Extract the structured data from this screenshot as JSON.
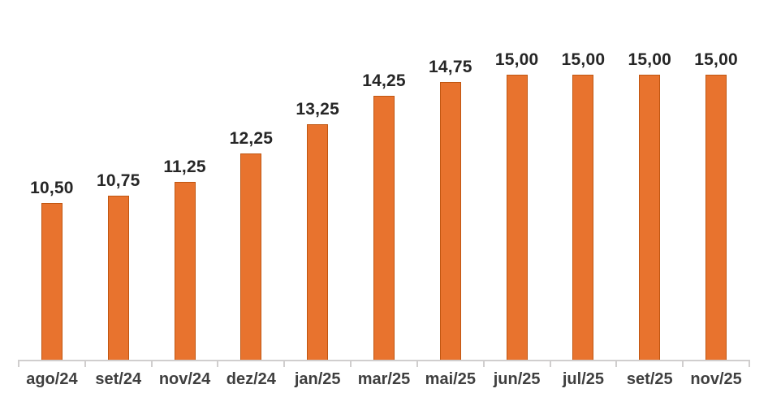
{
  "chart_data": {
    "type": "bar",
    "categories": [
      "ago/24",
      "set/24",
      "nov/24",
      "dez/24",
      "jan/25",
      "mar/25",
      "mai/25",
      "jun/25",
      "jul/25",
      "set/25",
      "nov/25"
    ],
    "values": [
      10.5,
      10.75,
      11.25,
      12.25,
      13.25,
      14.25,
      14.75,
      15.0,
      15.0,
      15.0,
      15.0
    ],
    "value_labels": [
      "10,50",
      "10,75",
      "11,25",
      "12,25",
      "13,25",
      "14,25",
      "14,75",
      "15,00",
      "15,00",
      "15,00",
      "15,00"
    ],
    "title": "",
    "xlabel": "",
    "ylabel": "",
    "ylim": [
      5,
      16
    ],
    "grid": false,
    "legend": false,
    "decimal_separator": ",",
    "colors": {
      "bar_fill": "#E8732E",
      "bar_border": "#C05611",
      "value_label": "#262626",
      "axis_label": "#3F3F3F",
      "axis_line": "#D0CECE",
      "background": "#FFFFFF"
    }
  }
}
